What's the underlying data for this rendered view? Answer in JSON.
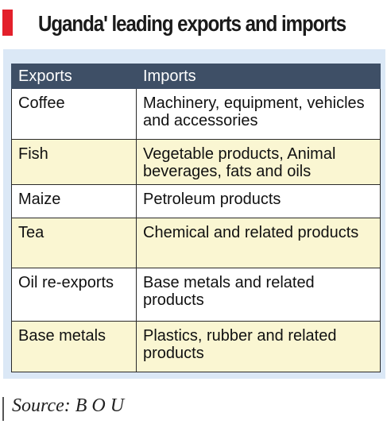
{
  "title": "Uganda' leading exports and imports",
  "colors": {
    "accent": "#e3202b",
    "panel_background": "#dbe8f6",
    "header_background": "#3e4f66",
    "row_highlight": "#faf6d2"
  },
  "table": {
    "headers": [
      "Exports",
      "Imports"
    ],
    "rows": [
      {
        "export": "Coffee",
        "import": "Machinery, equipment, vehicles and accessories"
      },
      {
        "export": "Fish",
        "import": "Vegetable products, Animal beverages, fats and oils"
      },
      {
        "export": "Maize",
        "import": "Petroleum products"
      },
      {
        "export": "Tea",
        "import": "Chemical and related products"
      },
      {
        "export": "Oil re-exports",
        "import": "Base metals and related products"
      },
      {
        "export": "Base metals",
        "import": "Plastics, rubber and related products"
      }
    ]
  },
  "source": "Source: B O U"
}
